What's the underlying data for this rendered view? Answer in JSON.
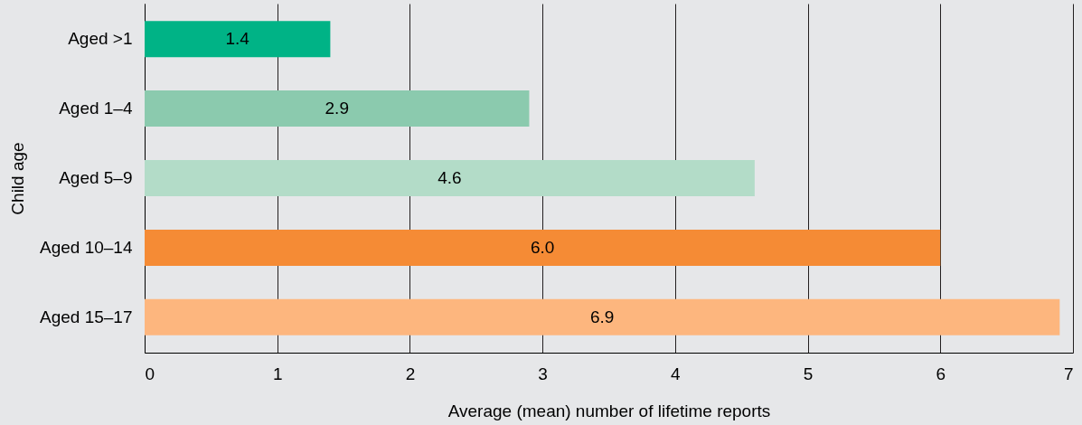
{
  "chart_data": {
    "type": "bar",
    "orientation": "horizontal",
    "xlabel": "Average (mean) number of lifetime reports",
    "ylabel": "Child age",
    "categories": [
      "Aged >1",
      "Aged 1–4",
      "Aged 5–9",
      "Aged 10–14",
      "Aged 15–17"
    ],
    "values": [
      1.4,
      2.9,
      4.6,
      6.0,
      6.9
    ],
    "value_labels": [
      "1.4",
      "2.9",
      "4.6",
      "6.0",
      "6.9"
    ],
    "colors": [
      "#00b386",
      "#8bcaae",
      "#b3dcc8",
      "#f58b35",
      "#fdb67e"
    ],
    "xlim": [
      0,
      7
    ],
    "xticks": [
      0,
      1,
      2,
      3,
      4,
      5,
      6,
      7
    ],
    "grid": "x"
  }
}
